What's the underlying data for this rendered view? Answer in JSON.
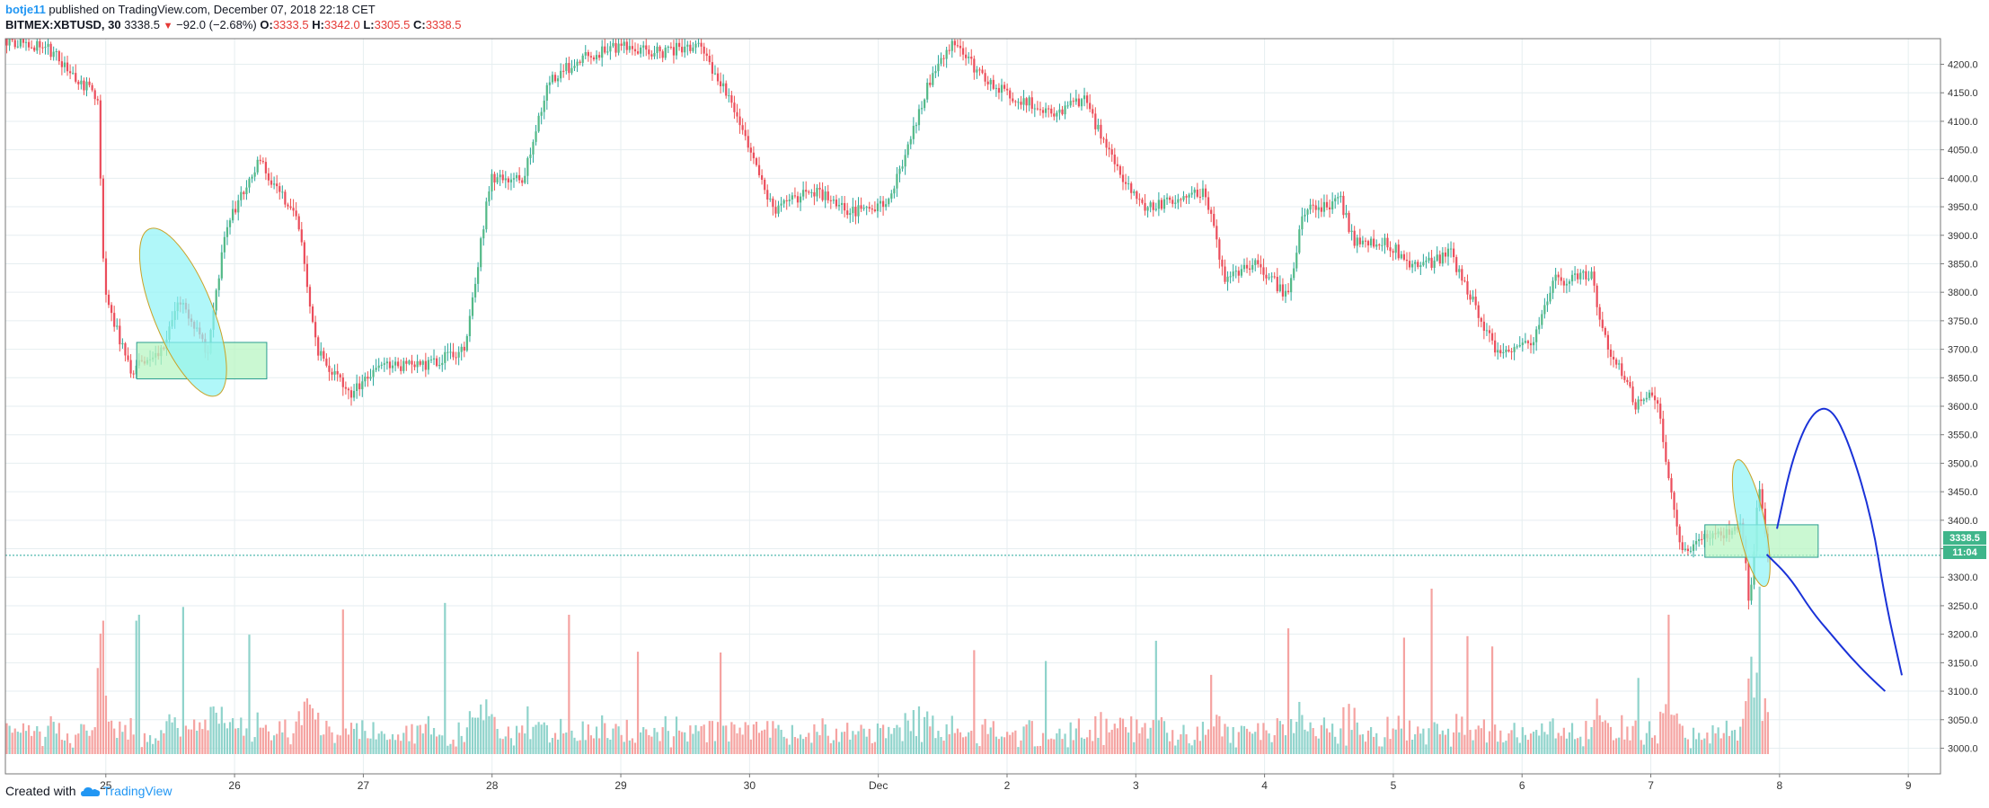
{
  "header": {
    "author": "botje11",
    "published": "published on TradingView.com, December 07, 2018 22:18 CET",
    "symbol": "BITMEX:XBTUSD, 30",
    "last": "3338.5",
    "change": "−92.0 (−2.68%)",
    "o_label": "O:",
    "o_value": "3333.5",
    "h_label": "H:",
    "h_value": "3342.0",
    "l_label": "L:",
    "l_value": "3305.5",
    "c_label": "C:",
    "c_value": "3338.5"
  },
  "footer": {
    "created_with": "Created with",
    "brand": "TradingView"
  },
  "price_tag": {
    "price": "3338.5",
    "countdown": "11:04"
  },
  "colors": {
    "up": "#26a69a",
    "down": "#ef5350",
    "up_body": "#53b987",
    "down_body": "#eb4d5c",
    "grid": "#e6eef0",
    "zone_fill": "#b8f5c3",
    "zone_stroke": "#2a9d8f",
    "ellipse_fill": "#8ff3f7",
    "ellipse_stroke": "#c9a227",
    "projection": "#1a32d8",
    "price_line": "#26a69a"
  },
  "chart_data": {
    "type": "candlestick",
    "symbol": "BITMEX:XBTUSD",
    "interval": "30",
    "y_ticks": [
      "4200.0",
      "4150.0",
      "4100.0",
      "4050.0",
      "4000.0",
      "3950.0",
      "3900.0",
      "3850.0",
      "3800.0",
      "3750.0",
      "3700.0",
      "3650.0",
      "3600.0",
      "3550.0",
      "3500.0",
      "3450.0",
      "3400.0",
      "3350.0",
      "3300.0",
      "3250.0",
      "3200.0",
      "3150.0",
      "3100.0",
      "3050.0",
      "3000.0"
    ],
    "ylim": [
      2955,
      4245
    ],
    "x_ticks": [
      "25",
      "26",
      "27",
      "28",
      "29",
      "30",
      "Dec",
      "2",
      "3",
      "4",
      "5",
      "6",
      "7",
      "8",
      "9"
    ],
    "x_tick_days": [
      25,
      26,
      27,
      28,
      29,
      30,
      31,
      32,
      33,
      34,
      35,
      36,
      37,
      38,
      39
    ],
    "xlim_days": [
      24.22,
      39.25
    ],
    "last_price": 3338.5,
    "price_path_days": [
      24.22,
      24.55,
      24.95,
      25.0,
      25.2,
      25.45,
      25.6,
      25.8,
      25.95,
      26.2,
      26.5,
      26.65,
      26.9,
      27.15,
      27.45,
      27.8,
      28.0,
      28.25,
      28.45,
      28.7,
      29.0,
      29.3,
      29.6,
      29.9,
      30.2,
      30.5,
      30.8,
      31.1,
      31.4,
      31.6,
      31.8,
      32.1,
      32.4,
      32.6,
      32.9,
      33.1,
      33.3,
      33.55,
      33.7,
      33.95,
      34.2,
      34.3,
      34.6,
      34.7,
      34.95,
      35.2,
      35.45,
      35.6,
      35.8,
      36.1,
      36.25,
      36.55,
      36.65,
      36.9,
      37.05,
      37.25,
      37.45,
      37.6,
      37.72,
      37.78,
      37.85,
      37.92
    ],
    "price_path": [
      4245,
      4230,
      4140,
      3800,
      3660,
      3700,
      3790,
      3690,
      3920,
      4030,
      3930,
      3700,
      3620,
      3670,
      3670,
      3700,
      4000,
      4000,
      4170,
      4210,
      4230,
      4220,
      4235,
      4120,
      3940,
      3980,
      3940,
      3960,
      4170,
      4240,
      4180,
      4140,
      4110,
      4140,
      4000,
      3945,
      3960,
      3980,
      3820,
      3850,
      3790,
      3940,
      3960,
      3890,
      3890,
      3840,
      3870,
      3800,
      3700,
      3710,
      3820,
      3830,
      3720,
      3600,
      3620,
      3340,
      3370,
      3380,
      3390,
      3240,
      3470,
      3338
    ],
    "candle_count": 640,
    "volume_relative": true,
    "annotations": [
      {
        "type": "zone",
        "day_from": 25.24,
        "day_to": 26.25,
        "price_from": 3648,
        "price_to": 3712
      },
      {
        "type": "ellipse",
        "center_day": 25.6,
        "center_price": 3765,
        "note": "highlight"
      },
      {
        "type": "zone",
        "day_from": 37.42,
        "day_to": 38.3,
        "price_from": 3335,
        "price_to": 3392
      },
      {
        "type": "ellipse",
        "center_day": 37.78,
        "center_price": 3395,
        "note": "highlight"
      },
      {
        "type": "projection-up",
        "days": [
          37.98,
          38.1,
          38.25,
          38.4,
          38.55,
          38.72,
          38.82,
          38.95
        ],
        "prices": [
          3385,
          3510,
          3590,
          3600,
          3530,
          3400,
          3260,
          3128
        ]
      },
      {
        "type": "projection-down",
        "days": [
          37.9,
          38.08,
          38.25,
          38.4,
          38.55,
          38.7,
          38.82
        ],
        "prices": [
          3340,
          3300,
          3240,
          3200,
          3160,
          3125,
          3100
        ]
      }
    ]
  }
}
